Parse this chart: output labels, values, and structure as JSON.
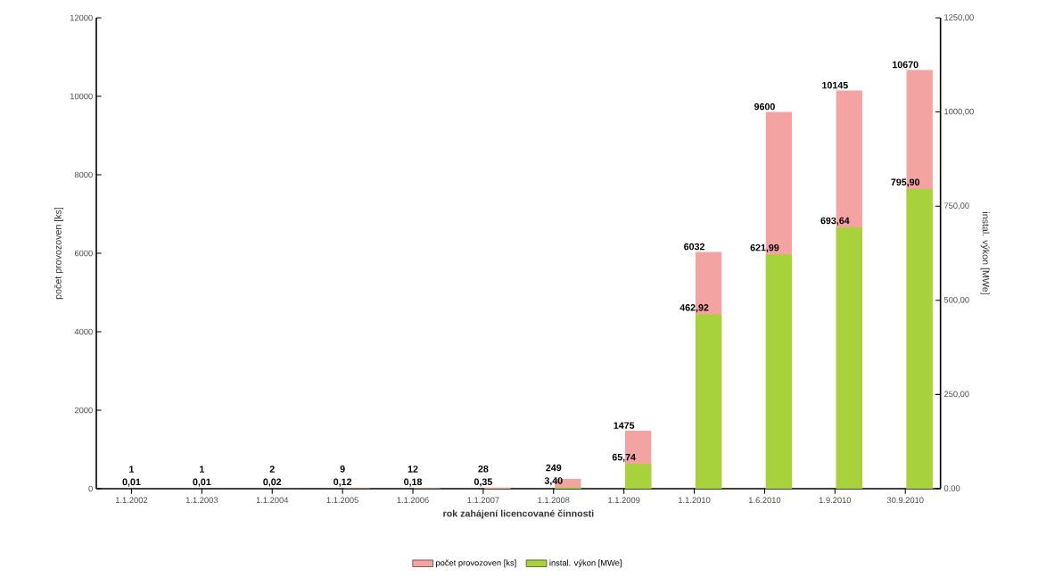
{
  "chart_data": {
    "type": "bar",
    "xlabel": "rok zahájení licencované činnosti",
    "ylabel": "počet provozoven [ks]",
    "y2label": "instal. výkon [MWe]",
    "categories": [
      "1.1.2002",
      "1.1.2003",
      "1.1.2004",
      "1.1.2005",
      "1.1.2006",
      "1.1.2007",
      "1.1.2008",
      "1.1.2009",
      "1.1.2010",
      "1.6.2010",
      "1.9.2010",
      "30.9.2010"
    ],
    "series": [
      {
        "name": "počet provozoven [ks]",
        "color": "#f4a3a3",
        "values": [
          1,
          1,
          2,
          9,
          12,
          28,
          249,
          1475,
          6032,
          9600,
          10145,
          10670
        ],
        "value_labels": [
          "1",
          "1",
          "2",
          "9",
          "12",
          "28",
          "249",
          "1475",
          "6032",
          "9600",
          "10145",
          "10670"
        ]
      },
      {
        "name": "instal. výkon [MWe]",
        "color": "#a8d23c",
        "axis": "y2",
        "values": [
          0.01,
          0.01,
          0.02,
          0.12,
          0.18,
          0.35,
          3.4,
          65.74,
          462.92,
          621.99,
          693.64,
          795.9
        ],
        "value_labels": [
          "0,01",
          "0,01",
          "0,02",
          "0,12",
          "0,18",
          "0,35",
          "3,40",
          "65,74",
          "462,92",
          "621,99",
          "693,64",
          "795,90"
        ]
      }
    ],
    "ylim": [
      0,
      12000
    ],
    "yticks": [
      0,
      2000,
      4000,
      6000,
      8000,
      10000,
      12000
    ],
    "y2lim": [
      0,
      1250
    ],
    "y2ticks": [
      {
        "value": 0,
        "label": "0,00"
      },
      {
        "value": 250,
        "label": "250,00"
      },
      {
        "value": 500,
        "label": "500,00"
      },
      {
        "value": 750,
        "label": "750,00"
      },
      {
        "value": 1000,
        "label": "1000,00"
      },
      {
        "value": 1250,
        "label": "1250,00"
      }
    ],
    "grid": false,
    "legend": "bottom"
  }
}
